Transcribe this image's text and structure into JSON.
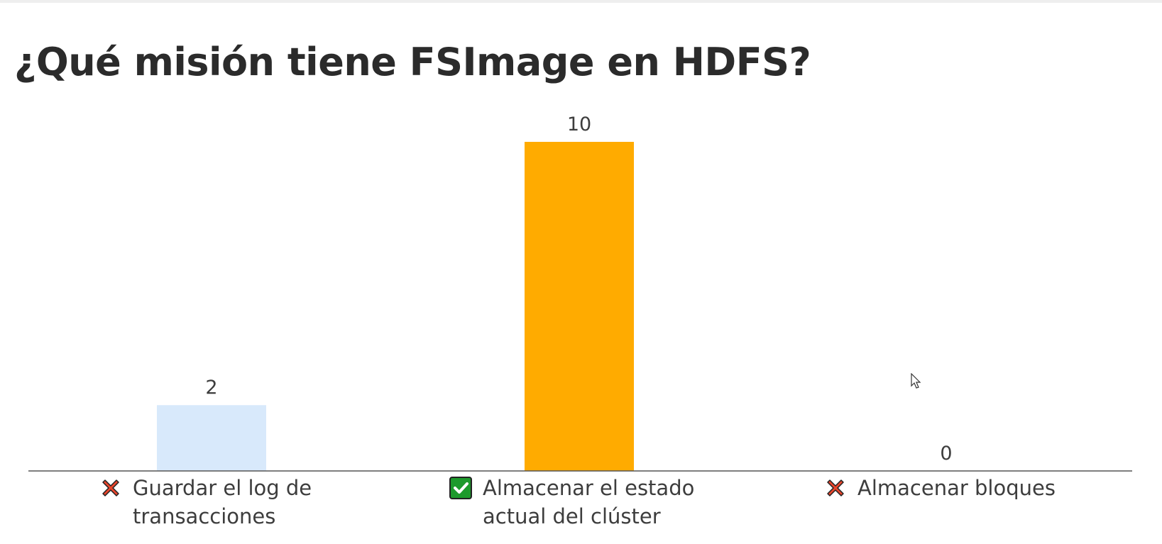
{
  "title": "¿Qué misión tiene FSImage en HDFS?",
  "chart_data": {
    "type": "bar",
    "title": "¿Qué misión tiene FSImage en HDFS?",
    "categories": [
      "Guardar el log de transacciones",
      "Almacenar el estado actual del clúster",
      "Almacenar bloques"
    ],
    "values": [
      2,
      10,
      0
    ],
    "ylim": [
      0,
      10
    ],
    "grid": false,
    "colors": [
      "#d8e9fb",
      "#ffab00",
      "#d8e9fb"
    ]
  },
  "options": [
    {
      "label": "Guardar el log de transacciones",
      "icon": "cross-mark-icon",
      "correct": false
    },
    {
      "label": "Almacenar el estado actual del clúster",
      "icon": "check-mark-icon",
      "correct": true
    },
    {
      "label": "Almacenar bloques",
      "icon": "cross-mark-icon",
      "correct": false
    }
  ],
  "colors": {
    "correct": "#ffab00",
    "incorrect": "#d8e9fb",
    "cross": "#e8452c",
    "check": "#1d9a2c"
  }
}
